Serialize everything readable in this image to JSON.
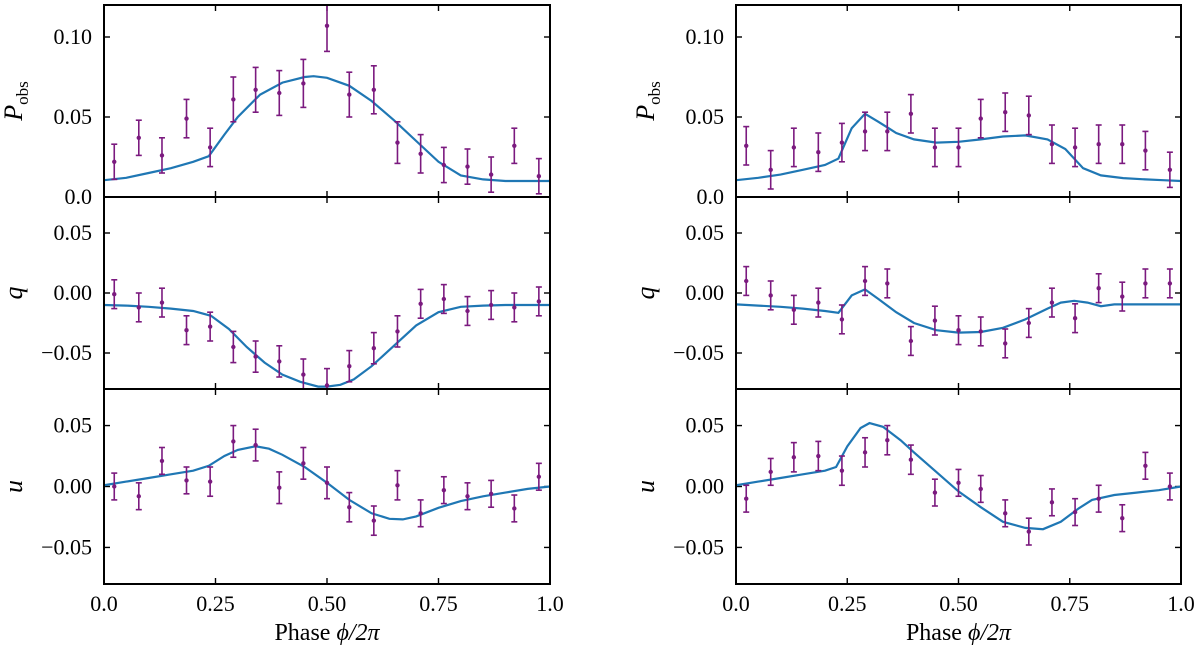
{
  "chart_data": [
    {
      "type": "line",
      "column": "left",
      "panels": [
        {
          "id": "P",
          "ylabel": "P",
          "ylabel_sub": "obs",
          "ylim": [
            0.0,
            0.12
          ],
          "yticks": [
            0.0,
            0.05,
            0.1
          ],
          "ytick_labels": [
            "0.0",
            "0.05",
            "0.10"
          ],
          "points": {
            "x": [
              0.023,
              0.078,
              0.13,
              0.185,
              0.238,
              0.29,
              0.34,
              0.393,
              0.447,
              0.5,
              0.55,
              0.605,
              0.658,
              0.71,
              0.762,
              0.815,
              0.868,
              0.92,
              0.975
            ],
            "y": [
              0.022,
              0.037,
              0.026,
              0.049,
              0.031,
              0.061,
              0.067,
              0.065,
              0.071,
              0.107,
              0.064,
              0.067,
              0.034,
              0.027,
              0.02,
              0.019,
              0.014,
              0.032,
              0.013
            ],
            "err": [
              0.011,
              0.011,
              0.011,
              0.012,
              0.012,
              0.014,
              0.014,
              0.014,
              0.015,
              0.016,
              0.014,
              0.015,
              0.013,
              0.012,
              0.011,
              0.011,
              0.011,
              0.011,
              0.011
            ]
          },
          "model": {
            "x": [
              0.0,
              0.05,
              0.1,
              0.15,
              0.2,
              0.235,
              0.27,
              0.3,
              0.35,
              0.4,
              0.45,
              0.47,
              0.5,
              0.55,
              0.6,
              0.65,
              0.7,
              0.75,
              0.8,
              0.85,
              0.9,
              0.95,
              1.0
            ],
            "y": [
              0.0105,
              0.012,
              0.015,
              0.018,
              0.022,
              0.0255,
              0.039,
              0.05,
              0.064,
              0.0715,
              0.075,
              0.0755,
              0.0745,
              0.0695,
              0.06,
              0.048,
              0.035,
              0.022,
              0.0135,
              0.011,
              0.01,
              0.01,
              0.01
            ]
          }
        },
        {
          "id": "q",
          "ylabel": "q",
          "ylim": [
            -0.08,
            0.08
          ],
          "yticks": [
            -0.05,
            0.0,
            0.05
          ],
          "ytick_labels": [
            "−0.05",
            "0.00",
            "0.05"
          ],
          "points": {
            "x": [
              0.023,
              0.078,
              0.13,
              0.185,
              0.238,
              0.29,
              0.34,
              0.393,
              0.447,
              0.5,
              0.55,
              0.605,
              0.658,
              0.71,
              0.762,
              0.815,
              0.868,
              0.92,
              0.975
            ],
            "y": [
              -0.001,
              -0.012,
              -0.008,
              -0.031,
              -0.028,
              -0.045,
              -0.053,
              -0.057,
              -0.068,
              -0.077,
              -0.061,
              -0.046,
              -0.032,
              -0.009,
              -0.005,
              -0.015,
              -0.01,
              -0.012,
              -0.007
            ],
            "err": [
              0.012,
              0.012,
              0.012,
              0.012,
              0.012,
              0.013,
              0.013,
              0.013,
              0.013,
              0.014,
              0.013,
              0.013,
              0.013,
              0.012,
              0.012,
              0.012,
              0.012,
              0.012,
              0.012
            ]
          },
          "model": {
            "x": [
              0.0,
              0.05,
              0.1,
              0.15,
              0.2,
              0.24,
              0.28,
              0.32,
              0.36,
              0.4,
              0.44,
              0.48,
              0.5,
              0.53,
              0.56,
              0.6,
              0.65,
              0.7,
              0.75,
              0.8,
              0.85,
              0.9,
              1.0
            ],
            "y": [
              -0.01,
              -0.0105,
              -0.0115,
              -0.013,
              -0.015,
              -0.019,
              -0.03,
              -0.045,
              -0.058,
              -0.068,
              -0.074,
              -0.078,
              -0.078,
              -0.0765,
              -0.072,
              -0.061,
              -0.044,
              -0.027,
              -0.016,
              -0.0115,
              -0.0105,
              -0.01,
              -0.01
            ]
          }
        },
        {
          "id": "u",
          "ylabel": "u",
          "ylim": [
            -0.08,
            0.08
          ],
          "yticks": [
            -0.05,
            0.0,
            0.05
          ],
          "ytick_labels": [
            "−0.05",
            "0.00",
            "0.05"
          ],
          "points": {
            "x": [
              0.023,
              0.078,
              0.13,
              0.185,
              0.238,
              0.29,
              0.34,
              0.393,
              0.447,
              0.5,
              0.55,
              0.605,
              0.658,
              0.71,
              0.762,
              0.815,
              0.868,
              0.92,
              0.975
            ],
            "y": [
              0.0,
              -0.008,
              0.021,
              0.005,
              0.004,
              0.037,
              0.034,
              -0.001,
              0.019,
              0.003,
              -0.017,
              -0.028,
              0.001,
              -0.022,
              -0.003,
              -0.008,
              -0.006,
              -0.018,
              0.008
            ],
            "err": [
              0.011,
              0.011,
              0.011,
              0.011,
              0.012,
              0.013,
              0.013,
              0.013,
              0.013,
              0.013,
              0.012,
              0.012,
              0.012,
              0.011,
              0.011,
              0.011,
              0.011,
              0.011,
              0.011
            ]
          },
          "model": {
            "x": [
              0.0,
              0.05,
              0.1,
              0.15,
              0.2,
              0.235,
              0.27,
              0.3,
              0.34,
              0.37,
              0.4,
              0.45,
              0.5,
              0.55,
              0.6,
              0.64,
              0.67,
              0.7,
              0.75,
              0.8,
              0.85,
              0.9,
              0.95,
              1.0
            ],
            "y": [
              0.001,
              0.004,
              0.007,
              0.01,
              0.013,
              0.017,
              0.025,
              0.03,
              0.033,
              0.031,
              0.026,
              0.016,
              0.003,
              -0.011,
              -0.022,
              -0.0265,
              -0.027,
              -0.0245,
              -0.0175,
              -0.012,
              -0.008,
              -0.005,
              -0.002,
              0.0
            ]
          }
        }
      ],
      "xlim": [
        0.0,
        1.0
      ],
      "xticks": [
        0.0,
        0.25,
        0.5,
        0.75,
        1.0
      ],
      "xtick_labels": [
        "0.0",
        "0.25",
        "0.50",
        "0.75",
        "1.0"
      ],
      "xlabel_prefix": "Phase ",
      "xlabel_math": "ϕ/2π"
    },
    {
      "type": "line",
      "column": "right",
      "panels": [
        {
          "id": "P",
          "ylabel": "P",
          "ylabel_sub": "obs",
          "ylim": [
            0.0,
            0.12
          ],
          "yticks": [
            0.0,
            0.05,
            0.1
          ],
          "ytick_labels": [
            "0.0",
            "0.05",
            "0.10"
          ],
          "points": {
            "x": [
              0.023,
              0.078,
              0.13,
              0.185,
              0.238,
              0.29,
              0.34,
              0.393,
              0.447,
              0.5,
              0.55,
              0.605,
              0.658,
              0.71,
              0.762,
              0.815,
              0.868,
              0.92,
              0.975
            ],
            "y": [
              0.032,
              0.017,
              0.031,
              0.028,
              0.034,
              0.041,
              0.041,
              0.052,
              0.031,
              0.031,
              0.049,
              0.053,
              0.051,
              0.033,
              0.031,
              0.033,
              0.033,
              0.029,
              0.017
            ],
            "err": [
              0.012,
              0.012,
              0.012,
              0.012,
              0.012,
              0.012,
              0.012,
              0.012,
              0.012,
              0.012,
              0.012,
              0.012,
              0.012,
              0.012,
              0.012,
              0.012,
              0.012,
              0.012,
              0.011
            ]
          },
          "model": {
            "x": [
              0.0,
              0.05,
              0.1,
              0.15,
              0.2,
              0.23,
              0.26,
              0.29,
              0.32,
              0.36,
              0.4,
              0.45,
              0.5,
              0.55,
              0.6,
              0.65,
              0.7,
              0.74,
              0.78,
              0.82,
              0.87,
              0.92,
              0.96,
              1.0
            ],
            "y": [
              0.0105,
              0.012,
              0.014,
              0.017,
              0.02,
              0.024,
              0.043,
              0.052,
              0.047,
              0.04,
              0.036,
              0.034,
              0.0345,
              0.036,
              0.0378,
              0.0385,
              0.036,
              0.03,
              0.018,
              0.0135,
              0.0118,
              0.011,
              0.0105,
              0.01
            ]
          }
        },
        {
          "id": "q",
          "ylabel": "q",
          "ylim": [
            -0.08,
            0.08
          ],
          "yticks": [
            -0.05,
            0.0,
            0.05
          ],
          "ytick_labels": [
            "−0.05",
            "0.00",
            "0.05"
          ],
          "points": {
            "x": [
              0.023,
              0.078,
              0.13,
              0.185,
              0.238,
              0.29,
              0.34,
              0.393,
              0.447,
              0.5,
              0.55,
              0.605,
              0.658,
              0.71,
              0.762,
              0.815,
              0.868,
              0.92,
              0.975
            ],
            "y": [
              0.01,
              -0.002,
              -0.014,
              -0.008,
              -0.022,
              0.01,
              0.008,
              -0.04,
              -0.023,
              -0.031,
              -0.032,
              -0.042,
              -0.025,
              -0.008,
              -0.021,
              0.004,
              -0.003,
              0.008,
              0.008
            ],
            "err": [
              0.012,
              0.012,
              0.012,
              0.012,
              0.012,
              0.012,
              0.012,
              0.012,
              0.012,
              0.012,
              0.012,
              0.012,
              0.012,
              0.012,
              0.012,
              0.012,
              0.012,
              0.012,
              0.012
            ]
          },
          "model": {
            "x": [
              0.0,
              0.05,
              0.1,
              0.15,
              0.2,
              0.23,
              0.26,
              0.29,
              0.32,
              0.36,
              0.4,
              0.45,
              0.5,
              0.55,
              0.6,
              0.65,
              0.7,
              0.73,
              0.76,
              0.79,
              0.82,
              0.85,
              0.9,
              1.0
            ],
            "y": [
              -0.0095,
              -0.0105,
              -0.0115,
              -0.013,
              -0.015,
              -0.0165,
              -0.002,
              0.003,
              -0.005,
              -0.016,
              -0.025,
              -0.031,
              -0.033,
              -0.0325,
              -0.029,
              -0.022,
              -0.013,
              -0.008,
              -0.0065,
              -0.008,
              -0.011,
              -0.0095,
              -0.0095,
              -0.0095
            ]
          }
        },
        {
          "id": "u",
          "ylabel": "u",
          "ylim": [
            -0.08,
            0.08
          ],
          "yticks": [
            -0.05,
            0.0,
            0.05
          ],
          "ytick_labels": [
            "−0.05",
            "0.00",
            "0.05"
          ],
          "points": {
            "x": [
              0.023,
              0.078,
              0.13,
              0.185,
              0.238,
              0.29,
              0.34,
              0.393,
              0.447,
              0.5,
              0.55,
              0.605,
              0.658,
              0.71,
              0.762,
              0.815,
              0.868,
              0.92,
              0.975
            ],
            "y": [
              -0.01,
              0.012,
              0.024,
              0.025,
              0.013,
              0.028,
              0.038,
              0.022,
              -0.005,
              0.003,
              -0.002,
              -0.022,
              -0.037,
              -0.013,
              -0.021,
              -0.01,
              -0.026,
              0.017,
              0.0
            ],
            "err": [
              0.011,
              0.011,
              0.012,
              0.012,
              0.012,
              0.012,
              0.012,
              0.012,
              0.011,
              0.011,
              0.011,
              0.011,
              0.011,
              0.011,
              0.011,
              0.011,
              0.011,
              0.011,
              0.011
            ]
          },
          "model": {
            "x": [
              0.0,
              0.05,
              0.1,
              0.15,
              0.2,
              0.225,
              0.25,
              0.28,
              0.3,
              0.33,
              0.37,
              0.4,
              0.45,
              0.5,
              0.55,
              0.6,
              0.65,
              0.69,
              0.73,
              0.77,
              0.8,
              0.85,
              0.9,
              0.95,
              1.0
            ],
            "y": [
              0.001,
              0.004,
              0.007,
              0.01,
              0.013,
              0.016,
              0.033,
              0.048,
              0.052,
              0.049,
              0.038,
              0.028,
              0.012,
              -0.004,
              -0.017,
              -0.029,
              -0.034,
              -0.035,
              -0.029,
              -0.018,
              -0.011,
              -0.007,
              -0.005,
              -0.003,
              0.0
            ]
          }
        }
      ],
      "xlim": [
        0.0,
        1.0
      ],
      "xticks": [
        0.0,
        0.25,
        0.5,
        0.75,
        1.0
      ],
      "xtick_labels": [
        "0.0",
        "0.25",
        "0.50",
        "0.75",
        "1.0"
      ],
      "xlabel_prefix": "Phase ",
      "xlabel_math": "ϕ/2π"
    }
  ],
  "colors": {
    "model_line": "#1f77b4",
    "data_points": "#7b1a7f",
    "axes": "#000000",
    "background": "#ffffff"
  }
}
